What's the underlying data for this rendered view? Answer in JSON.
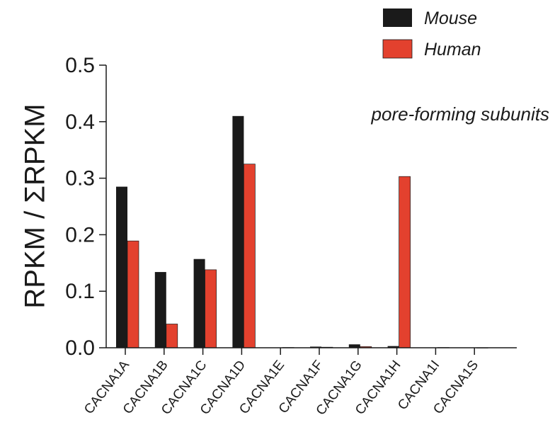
{
  "chart_data": {
    "type": "bar",
    "categories": [
      "CACNA1A",
      "CACNA1B",
      "CACNA1C",
      "CACNA1D",
      "CACNA1E",
      "CACNA1F",
      "CACNA1G",
      "CACNA1H",
      "CACNA1I",
      "CACNA1S"
    ],
    "series": [
      {
        "name": "Mouse",
        "color": "#1a1a1a",
        "values": [
          0.285,
          0.134,
          0.157,
          0.41,
          0.0005,
          0.002,
          0.006,
          0.003,
          0.0005,
          0.0002
        ]
      },
      {
        "name": "Human",
        "color": "#e3412e",
        "values": [
          0.189,
          0.042,
          0.138,
          0.325,
          0.0005,
          0.001,
          0.002,
          0.303,
          0.0005,
          0.0002
        ]
      }
    ],
    "title": "",
    "xlabel": "",
    "ylabel": "RPKM / ΣRPKM",
    "ylim": [
      0,
      0.5
    ],
    "yticks": [
      "0.0",
      "0.1",
      "0.2",
      "0.3",
      "0.4",
      "0.5"
    ],
    "annotation": "pore-forming subunits",
    "legend_position": "top-right",
    "grid": false
  }
}
